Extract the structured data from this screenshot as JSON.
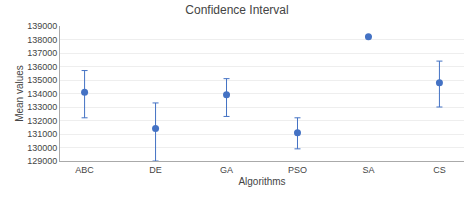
{
  "chart_data": {
    "type": "scatter",
    "title": "Confidence Interval",
    "xlabel": "Algorithms",
    "ylabel": "Mean values",
    "categories": [
      "ABC",
      "DE",
      "GA",
      "PSO",
      "SA",
      "CS"
    ],
    "values": [
      134100,
      131400,
      133900,
      131100,
      138200,
      134800
    ],
    "yerr_lower": [
      1900,
      2400,
      1600,
      1200,
      0,
      1800
    ],
    "yerr_upper": [
      1600,
      1900,
      1200,
      1100,
      0,
      1600
    ],
    "color": "#4472C4",
    "marker": "circle",
    "ylim": [
      129000,
      139000
    ],
    "yticks": [
      129000,
      130000,
      131000,
      132000,
      133000,
      134000,
      135000,
      136000,
      137000,
      138000,
      139000
    ],
    "grid": true
  }
}
